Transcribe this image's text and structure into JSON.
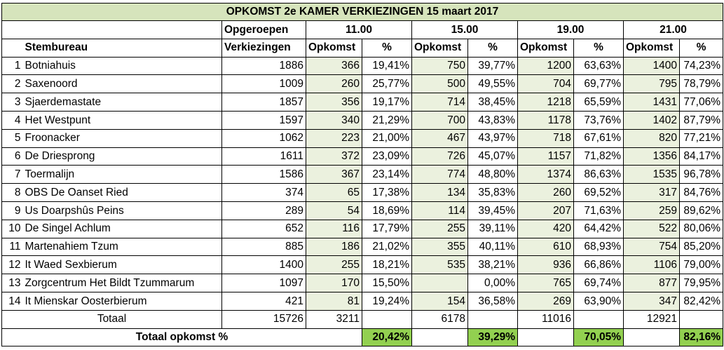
{
  "title": "OPKOMST 2e KAMER VERKIEZINGEN 15 maart 2017",
  "header": {
    "opgeroepen": "Opgeroepen",
    "verkiezingen": "Verkiezingen",
    "stembureau": "Stembureau",
    "times": [
      "11.00",
      "15.00",
      "19.00",
      "21.00"
    ],
    "opkomst": "Opkomst",
    "pct": "%"
  },
  "rows": [
    {
      "nr": "1",
      "name": "Botniahuis",
      "total": "1886",
      "v": [
        [
          "366",
          "19,41%"
        ],
        [
          "750",
          "39,77%"
        ],
        [
          "1200",
          "63,63%"
        ],
        [
          "1400",
          "74,23%"
        ]
      ]
    },
    {
      "nr": "2",
      "name": "Saxenoord",
      "total": "1009",
      "v": [
        [
          "260",
          "25,77%"
        ],
        [
          "500",
          "49,55%"
        ],
        [
          "704",
          "69,77%"
        ],
        [
          "795",
          "78,79%"
        ]
      ]
    },
    {
      "nr": "3",
      "name": "Sjaerdemastate",
      "total": "1857",
      "v": [
        [
          "356",
          "19,17%"
        ],
        [
          "714",
          "38,45%"
        ],
        [
          "1218",
          "65,59%"
        ],
        [
          "1431",
          "77,06%"
        ]
      ]
    },
    {
      "nr": "4",
      "name": "Het Westpunt",
      "total": "1597",
      "v": [
        [
          "340",
          "21,29%"
        ],
        [
          "700",
          "43,83%"
        ],
        [
          "1178",
          "73,76%"
        ],
        [
          "1402",
          "87,79%"
        ]
      ]
    },
    {
      "nr": "5",
      "name": "Froonacker",
      "total": "1062",
      "v": [
        [
          "223",
          "21,00%"
        ],
        [
          "467",
          "43,97%"
        ],
        [
          "718",
          "67,61%"
        ],
        [
          "820",
          "77,21%"
        ]
      ]
    },
    {
      "nr": "6",
      "name": "De Driesprong",
      "total": "1611",
      "v": [
        [
          "372",
          "23,09%"
        ],
        [
          "726",
          "45,07%"
        ],
        [
          "1157",
          "71,82%"
        ],
        [
          "1356",
          "84,17%"
        ]
      ]
    },
    {
      "nr": "7",
      "name": "Toermalijn",
      "total": "1586",
      "v": [
        [
          "367",
          "23,14%"
        ],
        [
          "774",
          "48,80%"
        ],
        [
          "1374",
          "86,63%"
        ],
        [
          "1535",
          "96,78%"
        ]
      ]
    },
    {
      "nr": "8",
      "name": "OBS De Oanset Ried",
      "total": "374",
      "v": [
        [
          "65",
          "17,38%"
        ],
        [
          "134",
          "35,83%"
        ],
        [
          "260",
          "69,52%"
        ],
        [
          "317",
          "84,76%"
        ]
      ]
    },
    {
      "nr": "9",
      "name": "Us Doarpshûs Peins",
      "total": "289",
      "v": [
        [
          "54",
          "18,69%"
        ],
        [
          "114",
          "39,45%"
        ],
        [
          "207",
          "71,63%"
        ],
        [
          "259",
          "89,62%"
        ]
      ]
    },
    {
      "nr": "10",
      "name": "De Singel Achlum",
      "total": "652",
      "v": [
        [
          "116",
          "17,79%"
        ],
        [
          "255",
          "39,11%"
        ],
        [
          "420",
          "64,42%"
        ],
        [
          "522",
          "80,06%"
        ]
      ]
    },
    {
      "nr": "11",
      "name": "Martenahiem Tzum",
      "total": "885",
      "v": [
        [
          "186",
          "21,02%"
        ],
        [
          "355",
          "40,11%"
        ],
        [
          "610",
          "68,93%"
        ],
        [
          "754",
          "85,20%"
        ]
      ]
    },
    {
      "nr": "12",
      "name": "It Waed Sexbierum",
      "total": "1400",
      "v": [
        [
          "255",
          "18,21%"
        ],
        [
          "535",
          "38,21%"
        ],
        [
          "936",
          "66,86%"
        ],
        [
          "1106",
          "79,00%"
        ]
      ]
    },
    {
      "nr": "13",
      "name": "Zorgcentrum Het Bildt Tzummarum",
      "total": "1097",
      "v": [
        [
          "170",
          "15,50%"
        ],
        [
          "",
          "0,00%"
        ],
        [
          "765",
          "69,74%"
        ],
        [
          "877",
          "79,95%"
        ]
      ]
    },
    {
      "nr": "14",
      "name": "It Mienskar Oosterbierum",
      "total": "421",
      "v": [
        [
          "81",
          "19,24%"
        ],
        [
          "154",
          "36,58%"
        ],
        [
          "269",
          "63,90%"
        ],
        [
          "347",
          "82,42%"
        ]
      ]
    }
  ],
  "totaal": {
    "label": "Totaal",
    "total": "15726",
    "v": [
      "3211",
      "6178",
      "11016",
      "12921"
    ]
  },
  "totaal_opkomst": {
    "label": "Totaal opkomst %",
    "v": [
      "20,42%",
      "39,29%",
      "70,05%",
      "82,16%"
    ]
  },
  "colors": {
    "title_bg": "#d6e4bc",
    "cell_green": "#ebf1de",
    "highlight": "#92d050"
  }
}
